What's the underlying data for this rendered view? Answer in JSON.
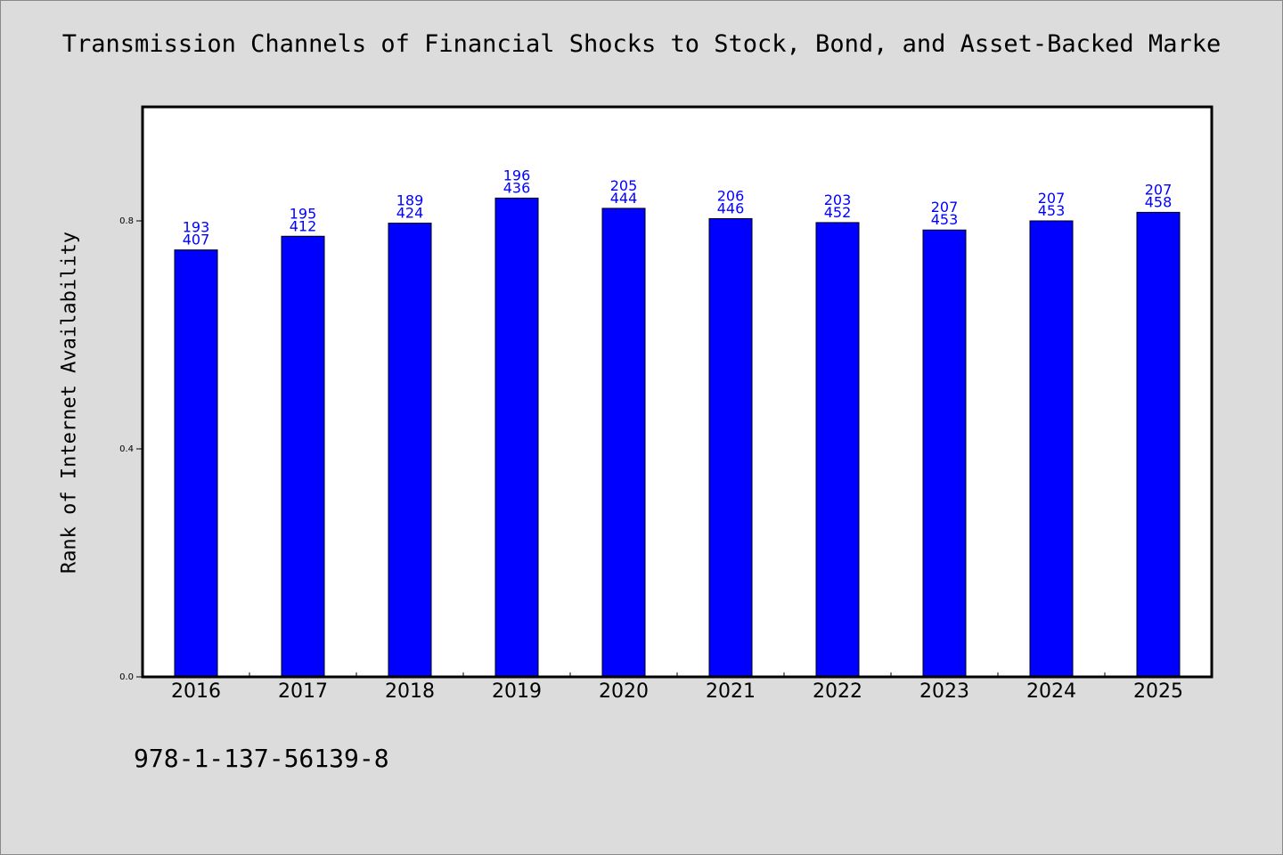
{
  "title": "Transmission Channels of Financial Shocks to Stock, Bond, and Asset-Backed Marke",
  "footnote": "978-1-137-56139-8",
  "colors": {
    "background": "#dcdcdc",
    "plot_background": "#ffffff",
    "bar_fill": "#0000ff",
    "label_color": "#0000ff"
  },
  "chart_data": {
    "type": "bar",
    "title": "Transmission Channels of Financial Shocks to Stock, Bond, and Asset-Backed Marke",
    "xlabel": "",
    "ylabel": "Rank of Internet Availability",
    "ylim": [
      0,
      1.0
    ],
    "yticks": [
      0.0,
      0.4,
      0.8
    ],
    "ytick_labels": [
      "0.0",
      "0.4",
      "0.8"
    ],
    "grid": false,
    "legend": "none",
    "categories": [
      "2016",
      "2017",
      "2018",
      "2019",
      "2020",
      "2021",
      "2022",
      "2023",
      "2024",
      "2025"
    ],
    "values": [
      0.749,
      0.773,
      0.796,
      0.84,
      0.822,
      0.804,
      0.797,
      0.784,
      0.8,
      0.815
    ],
    "labels_top": [
      "193",
      "195",
      "189",
      "196",
      "205",
      "206",
      "203",
      "207",
      "207",
      "207"
    ],
    "labels_bottom": [
      "407",
      "412",
      "424",
      "436",
      "444",
      "446",
      "452",
      "453",
      "453",
      "458"
    ]
  }
}
